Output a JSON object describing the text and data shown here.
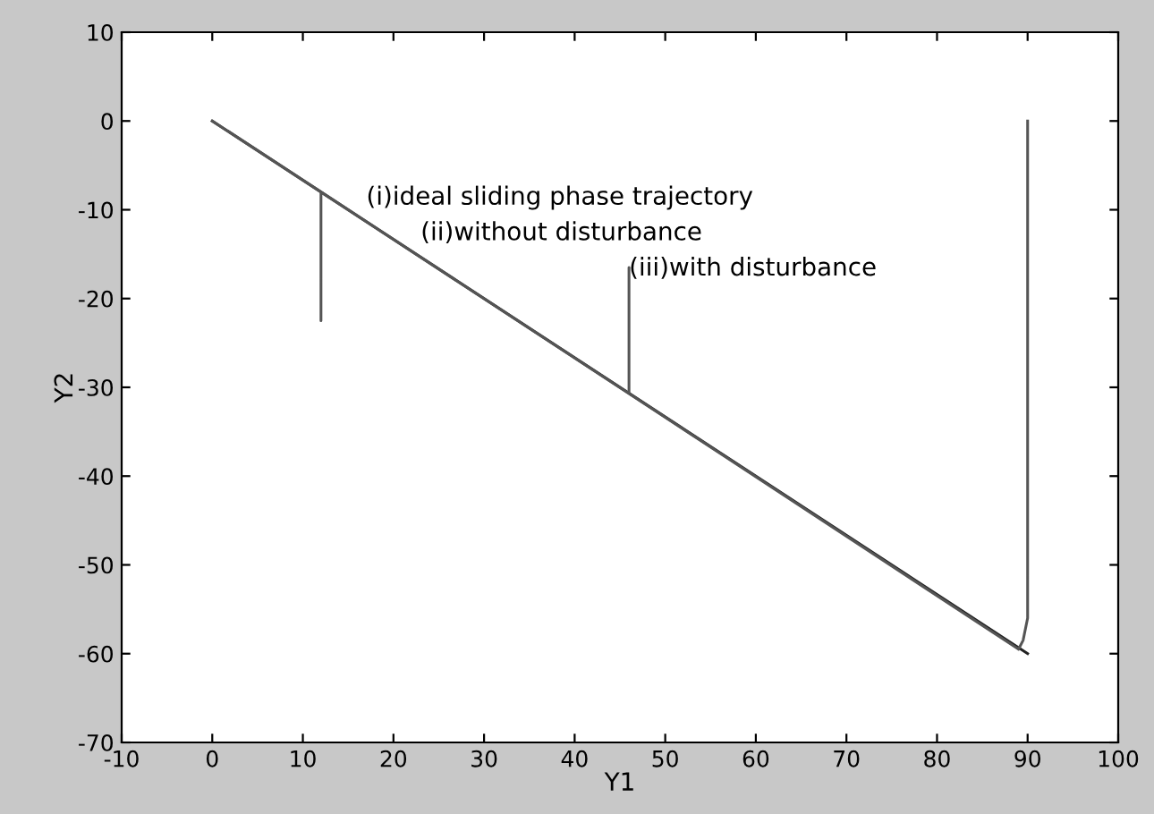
{
  "chart_data": {
    "type": "line",
    "xlabel": "Y1",
    "ylabel": "Y2",
    "xlim": [
      -10,
      100
    ],
    "xticks": [
      -10,
      0,
      10,
      20,
      30,
      40,
      50,
      60,
      70,
      80,
      90,
      100
    ],
    "ylim": [
      -70,
      10
    ],
    "yticks": [
      -70,
      -60,
      -50,
      -40,
      -30,
      -20,
      -10,
      0,
      10
    ],
    "grid": false,
    "series": [
      {
        "color": "#222222",
        "x": [
          0,
          90
        ],
        "values": [
          0,
          -60
        ]
      },
      {
        "color": "#555555",
        "x": [
          90,
          90,
          89.5,
          89,
          46,
          46,
          46,
          12,
          12,
          12,
          0
        ],
        "values": [
          0,
          -56,
          -58.5,
          -59.5,
          -30.7,
          -16.5,
          -30.7,
          -8,
          -22.5,
          -8,
          0
        ]
      }
    ],
    "annotations": [
      {
        "text": "(i)ideal sliding phase trajectory",
        "x": 17,
        "y": -10
      },
      {
        "text": "(ii)without disturbance",
        "x": 23,
        "y": -14
      },
      {
        "text": "(iii)with disturbance",
        "x": 46,
        "y": -18
      }
    ]
  }
}
